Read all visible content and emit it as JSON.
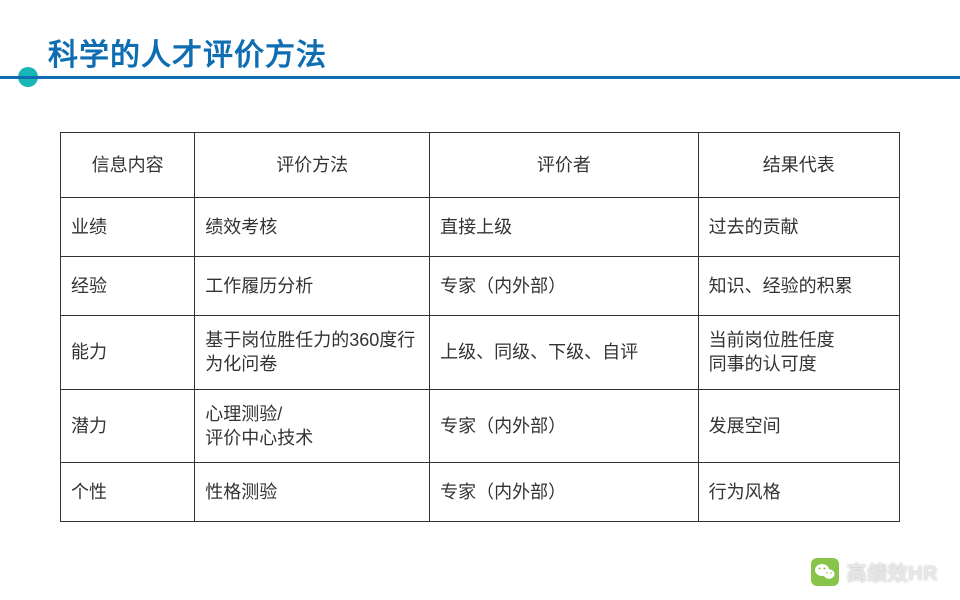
{
  "title": "科学的人才评价方法",
  "table": {
    "columns": [
      "信息内容",
      "评价方法",
      "评价者",
      "结果代表"
    ],
    "rows": [
      [
        "业绩",
        "绩效考核",
        "直接上级",
        "过去的贡献"
      ],
      [
        "经验",
        "工作履历分析",
        "专家（内外部）",
        "知识、经验的积累"
      ],
      [
        "能力",
        "基于岗位胜任力的360度行为化问卷",
        "上级、同级、下级、自评",
        "当前岗位胜任度\n同事的认可度"
      ],
      [
        "潜力",
        "心理测验/\n评价中心技术",
        "专家（内外部）",
        "发展空间"
      ],
      [
        "个性",
        "性格测验",
        "专家（内外部）",
        "行为风格"
      ]
    ],
    "border_color": "#333333",
    "header_align": "center",
    "body_align": "left",
    "font_size": 18,
    "col_widths_pct": [
      16,
      28,
      32,
      24
    ]
  },
  "colors": {
    "title": "#0f6db2",
    "underline": "#0f6db2",
    "accent_dot": "#18b7b5",
    "background": "#ffffff",
    "text": "#333333",
    "watermark_text": "#e6e6e6",
    "watermark_icon_bg": "#7ebf3a"
  },
  "watermark": {
    "text": "高绩效HR",
    "icon": "wechat"
  }
}
